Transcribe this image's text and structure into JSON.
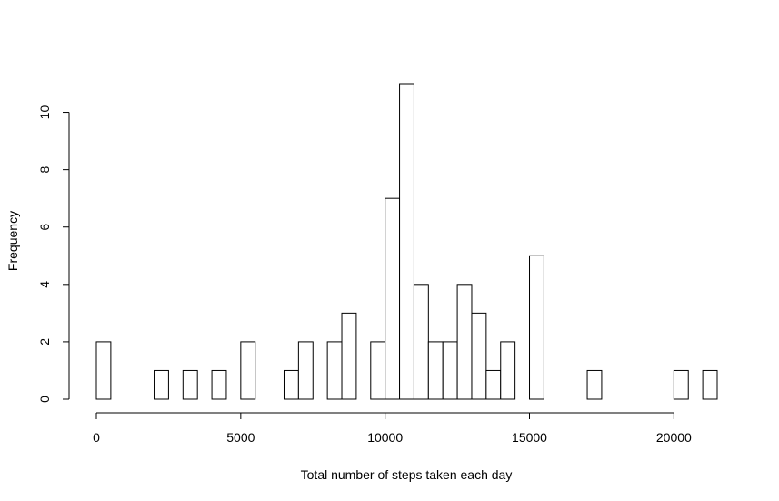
{
  "chart_data": {
    "type": "bar",
    "title": "",
    "xlabel": "Total number of steps taken each day",
    "ylabel": "Frequency",
    "bin_width": 500,
    "bin_start": 0,
    "values": [
      2,
      0,
      0,
      0,
      1,
      0,
      1,
      0,
      1,
      0,
      2,
      0,
      0,
      1,
      2,
      0,
      2,
      3,
      0,
      2,
      7,
      11,
      4,
      2,
      2,
      4,
      3,
      1,
      2,
      0,
      5,
      0,
      0,
      0,
      1,
      0,
      0,
      0,
      0,
      0,
      1,
      0,
      1
    ],
    "xlim": [
      0,
      21500
    ],
    "ylim": [
      0,
      11
    ],
    "x_ticks": [
      {
        "value": 0,
        "label": "0"
      },
      {
        "value": 5000,
        "label": "5000"
      },
      {
        "value": 10000,
        "label": "10000"
      },
      {
        "value": 15000,
        "label": "15000"
      },
      {
        "value": 20000,
        "label": "20000"
      }
    ],
    "y_ticks": [
      {
        "value": 0,
        "label": "0"
      },
      {
        "value": 2,
        "label": "2"
      },
      {
        "value": 4,
        "label": "4"
      },
      {
        "value": 6,
        "label": "6"
      },
      {
        "value": 8,
        "label": "8"
      },
      {
        "value": 10,
        "label": "10"
      }
    ],
    "grid": false,
    "colors": {
      "bar_fill": "#ffffff",
      "bar_stroke": "#000000"
    }
  }
}
